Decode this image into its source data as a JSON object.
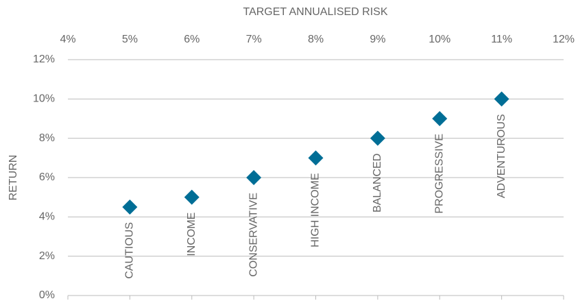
{
  "chart_data": {
    "type": "scatter",
    "xlabel": "TARGET ANNUALISED RISK",
    "ylabel": "RETURN",
    "labels": [
      "CAUTIOUS",
      "INCOME",
      "CONSERVATIVE",
      "HIGH INCOME",
      "BALANCED",
      "PROGRESSIVE",
      "ADVENTUROUS"
    ],
    "x": [
      5,
      6,
      7,
      8,
      9,
      10,
      11
    ],
    "values": [
      4.5,
      5,
      6,
      7,
      8,
      9,
      10
    ],
    "color": "#006e96",
    "xlim": [
      4,
      12
    ],
    "xticks": [
      {
        "value": 4,
        "label": "4%"
      },
      {
        "value": 5,
        "label": "5%"
      },
      {
        "value": 6,
        "label": "6%"
      },
      {
        "value": 7,
        "label": "7%"
      },
      {
        "value": 8,
        "label": "8%"
      },
      {
        "value": 9,
        "label": "9%"
      },
      {
        "value": 10,
        "label": "10%"
      },
      {
        "value": 11,
        "label": "11%"
      },
      {
        "value": 12,
        "label": "12%"
      }
    ],
    "ylim": [
      0,
      12
    ],
    "yticks": [
      {
        "value": 0,
        "label": "0%"
      },
      {
        "value": 2,
        "label": "2%"
      },
      {
        "value": 4,
        "label": "4%"
      },
      {
        "value": 6,
        "label": "6%"
      },
      {
        "value": 8,
        "label": "8%"
      },
      {
        "value": 10,
        "label": "10%"
      },
      {
        "value": 12,
        "label": "12%"
      }
    ],
    "grid": true
  }
}
